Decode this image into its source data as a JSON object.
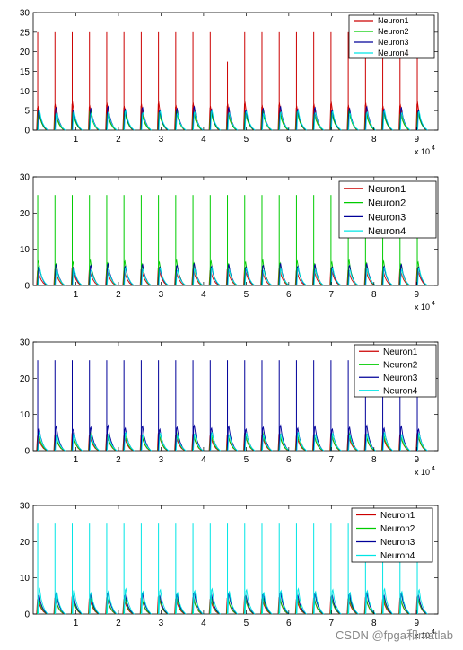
{
  "watermark": "CSDN @fpga和matlab",
  "colors": {
    "neuron1": "#cc0000",
    "neuron2": "#00cc00",
    "neuron3": "#000099",
    "neuron4": "#00e5e5"
  },
  "chart_data": [
    {
      "type": "line",
      "xlim": [
        0,
        95000
      ],
      "ylim": [
        0,
        30
      ],
      "x_multiplier": "x 10",
      "x_exponent": "4",
      "xticks": [
        "1",
        "2",
        "3",
        "4",
        "5",
        "6",
        "7",
        "8",
        "9"
      ],
      "yticks": [
        "0",
        "5",
        "10",
        "15",
        "20",
        "25",
        "30"
      ],
      "legend_position": "top-right",
      "grid": false,
      "series": [
        {
          "name": "Neuron1",
          "color": "#cc0000",
          "spike_peak": 25,
          "burst_peak": 7
        },
        {
          "name": "Neuron2",
          "color": "#00cc00",
          "spike_peak": 0,
          "burst_peak": 5
        },
        {
          "name": "Neuron3",
          "color": "#000099",
          "spike_peak": 0,
          "burst_peak": 6
        },
        {
          "name": "Neuron4",
          "color": "#00e5e5",
          "spike_peak": 0,
          "burst_peak": 5
        }
      ]
    },
    {
      "type": "line",
      "xlim": [
        0,
        95000
      ],
      "ylim": [
        0,
        30
      ],
      "x_multiplier": "x 10",
      "x_exponent": "4",
      "xticks": [
        "1",
        "2",
        "3",
        "4",
        "5",
        "6",
        "7",
        "8",
        "9"
      ],
      "yticks": [
        "0",
        "10",
        "20",
        "30"
      ],
      "legend_position": "top-right",
      "grid": false,
      "series": [
        {
          "name": "Neuron1",
          "color": "#cc0000",
          "spike_peak": 0,
          "burst_peak": 5
        },
        {
          "name": "Neuron2",
          "color": "#00cc00",
          "spike_peak": 25,
          "burst_peak": 7
        },
        {
          "name": "Neuron3",
          "color": "#000099",
          "spike_peak": 0,
          "burst_peak": 6
        },
        {
          "name": "Neuron4",
          "color": "#00e5e5",
          "spike_peak": 0,
          "burst_peak": 5
        }
      ]
    },
    {
      "type": "line",
      "xlim": [
        0,
        95000
      ],
      "ylim": [
        0,
        30
      ],
      "x_multiplier": "x 10",
      "x_exponent": "4",
      "xticks": [
        "1",
        "2",
        "3",
        "4",
        "5",
        "6",
        "7",
        "8",
        "9"
      ],
      "yticks": [
        "0",
        "10",
        "20",
        "30"
      ],
      "legend_position": "top-right",
      "grid": false,
      "series": [
        {
          "name": "Neuron1",
          "color": "#cc0000",
          "spike_peak": 0,
          "burst_peak": 5
        },
        {
          "name": "Neuron2",
          "color": "#00cc00",
          "spike_peak": 0,
          "burst_peak": 5
        },
        {
          "name": "Neuron3",
          "color": "#000099",
          "spike_peak": 25,
          "burst_peak": 7
        },
        {
          "name": "Neuron4",
          "color": "#00e5e5",
          "spike_peak": 0,
          "burst_peak": 5
        }
      ]
    },
    {
      "type": "line",
      "xlim": [
        0,
        95000
      ],
      "ylim": [
        0,
        30
      ],
      "x_multiplier": "x 10",
      "x_exponent": "4",
      "xticks": [
        "1",
        "2",
        "3",
        "4",
        "5",
        "6",
        "7",
        "8",
        "9"
      ],
      "yticks": [
        "0",
        "10",
        "20",
        "30"
      ],
      "legend_position": "top-right",
      "grid": false,
      "series": [
        {
          "name": "Neuron1",
          "color": "#cc0000",
          "spike_peak": 0,
          "burst_peak": 5
        },
        {
          "name": "Neuron2",
          "color": "#00cc00",
          "spike_peak": 0,
          "burst_peak": 5
        },
        {
          "name": "Neuron3",
          "color": "#000099",
          "spike_peak": 0,
          "burst_peak": 6
        },
        {
          "name": "Neuron4",
          "color": "#00e5e5",
          "spike_peak": 25,
          "burst_peak": 7
        }
      ]
    }
  ]
}
